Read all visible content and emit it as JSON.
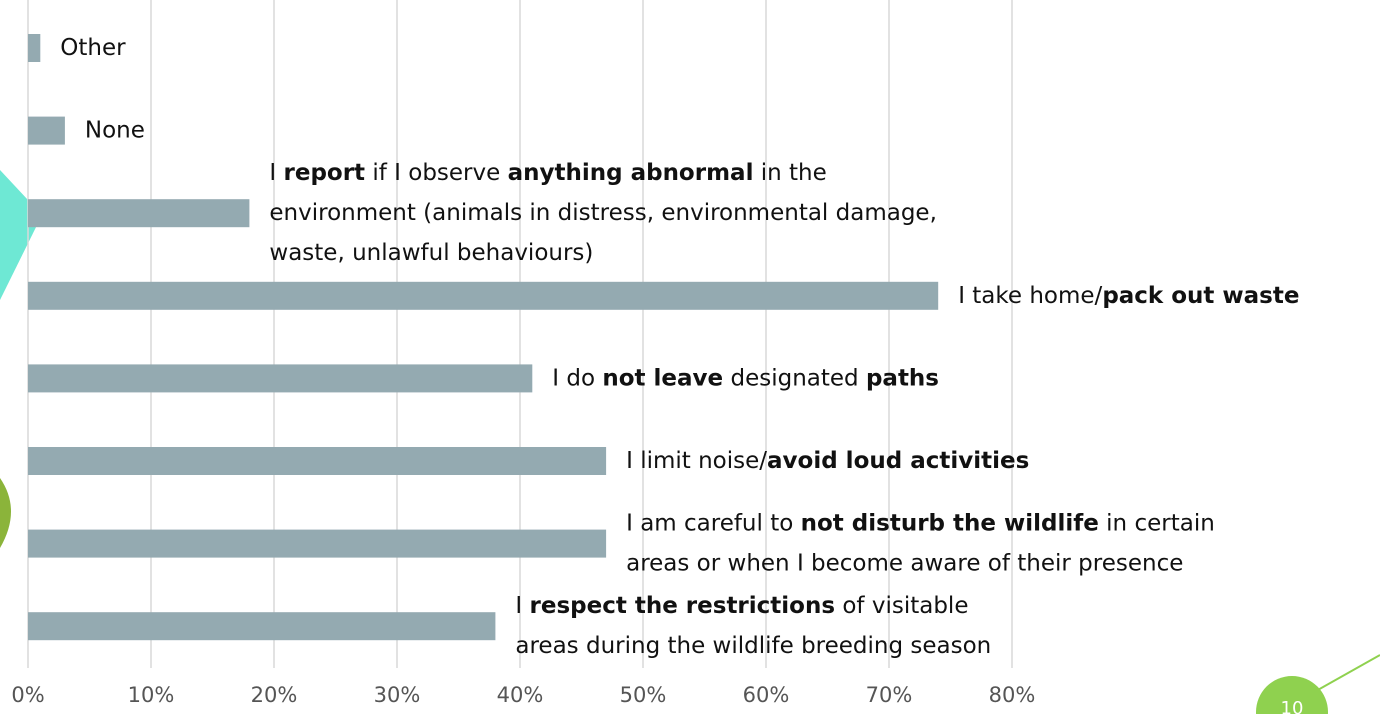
{
  "chart_data": {
    "type": "barh",
    "color": "#94aab1",
    "grid": true,
    "xlim": [
      0,
      100
    ],
    "xticks": [
      {
        "value": 0,
        "label": "0%"
      },
      {
        "value": 10,
        "label": "10%"
      },
      {
        "value": 20,
        "label": "20%"
      },
      {
        "value": 30,
        "label": "30%"
      },
      {
        "value": 40,
        "label": "40%"
      },
      {
        "value": 50,
        "label": "50%"
      },
      {
        "value": 60,
        "label": "60%"
      },
      {
        "value": 70,
        "label": "70%"
      },
      {
        "value": 80,
        "label": "80%"
      }
    ],
    "categories": [
      [
        [
          {
            "text": "Other"
          }
        ]
      ],
      [
        [
          {
            "text": "None"
          }
        ]
      ],
      [
        [
          {
            "text": "I "
          },
          {
            "text": "report",
            "bold": true
          },
          {
            "text": " if I observe "
          },
          {
            "text": "anything abnormal",
            "bold": true
          },
          {
            "text": " in the"
          }
        ],
        [
          {
            "text": "environment (animals in distress, environmental damage,"
          }
        ],
        [
          {
            "text": "waste, unlawful behaviours)"
          }
        ]
      ],
      [
        [
          {
            "text": "I take home/"
          },
          {
            "text": "pack out waste",
            "bold": true
          }
        ]
      ],
      [
        [
          {
            "text": "I do "
          },
          {
            "text": "not leave",
            "bold": true
          },
          {
            "text": " designated "
          },
          {
            "text": "paths",
            "bold": true
          }
        ]
      ],
      [
        [
          {
            "text": "I limit noise/"
          },
          {
            "text": "avoid loud activities",
            "bold": true
          }
        ]
      ],
      [
        [
          {
            "text": "I am careful to "
          },
          {
            "text": "not disturb the wildlife",
            "bold": true
          },
          {
            "text": " in certain"
          }
        ],
        [
          {
            "text": "areas or when I become aware of their presence"
          }
        ]
      ],
      [
        [
          {
            "text": "I "
          },
          {
            "text": "respect the restrictions",
            "bold": true
          },
          {
            "text": " of visitable"
          }
        ],
        [
          {
            "text": "areas during the wildlife breeding season"
          }
        ]
      ]
    ],
    "values": [
      1,
      3,
      18,
      74,
      41,
      47,
      47,
      38
    ]
  },
  "slide_number": "10"
}
